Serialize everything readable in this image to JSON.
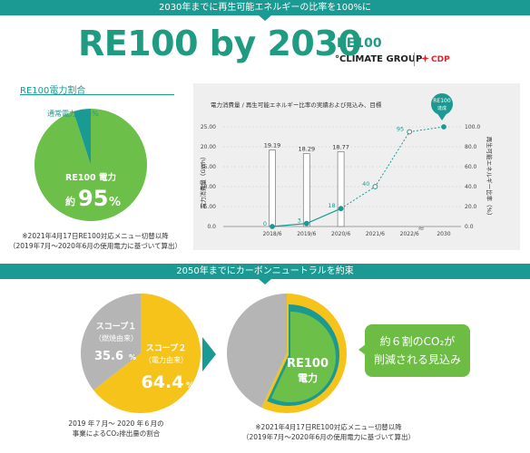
{
  "banner_top": "2030年までに再生可能エネルギーの比率を100%に",
  "main_title": "RE100 by 2030",
  "logos": {
    "re100": "RE100",
    "climate_group": "°CLIMATE GROUP",
    "cdp": "CDP"
  },
  "pie_section_title": "RE100電力割合",
  "pie1": {
    "label_small": "通常電力",
    "label_small_value": "約5%",
    "label_big": "RE100 電力",
    "label_big_value_prefix": "約",
    "label_big_value": "95",
    "label_big_unit": "%",
    "note_line1": "※2021年4月17日RE100対応メニュー切替以降",
    "note_line2": "（2019年7月～2020年6月の使用電力に基づいて算出）",
    "colors": {
      "re100": "#6cc04a",
      "normal": "#1a9a92"
    }
  },
  "chart_data": {
    "type": "bar",
    "title": "電力消費量 / 再生可能エネルギー比率の実績および見込み、目標",
    "categories": [
      "2018/6",
      "2019/6",
      "2020/6",
      "2021/6",
      "2022/6",
      "2030"
    ],
    "series": [
      {
        "name": "電力消費量",
        "type": "bar",
        "values": [
          19.19,
          18.29,
          18.77,
          null,
          null,
          null
        ],
        "color": "#ffffff"
      },
      {
        "name": "再生可能エネルギー比率",
        "type": "line",
        "values": [
          0,
          3,
          18,
          40,
          95,
          100
        ],
        "color": "#1a9a92"
      }
    ],
    "ylabel_left": "電力消費量（GWh）",
    "ylabel_right": "再生可能エネルギー比率（%）",
    "ylim_left": [
      0,
      25
    ],
    "ylim_right": [
      0,
      100
    ],
    "yticks_left": [
      "0.0",
      "5.00",
      "10.00",
      "15.00",
      "20.00",
      "25.00"
    ],
    "yticks_right": [
      "0.0",
      "20.0",
      "40.0",
      "60.0",
      "80.0",
      "100.0"
    ],
    "annotation": "RE100\n達成",
    "axis_break_symbol": "≈",
    "grid": true
  },
  "banner_mid": "2050年までにカーボンニュートラルを約束",
  "pie2": {
    "scope1_label_l1": "スコープ１",
    "scope1_label_l2": "（燃焼由来）",
    "scope1_value": "35.6",
    "scope1_unit": "%",
    "scope2_label_l1": "スコープ２",
    "scope2_label_l2": "（電力由来）",
    "scope2_value": "64.4",
    "scope2_unit": "%",
    "caption_line1": "2019 年７月～ 2020 年６月の",
    "caption_line2": "事業によるCO₂排出量の割合",
    "colors": {
      "scope1": "#b5b5b5",
      "scope2": "#f6c31b"
    }
  },
  "pie3": {
    "label_l1": "RE100",
    "label_l2": "電力",
    "note_line1": "※2021年4月17日RE100対応メニュー切替以降",
    "note_line2": "（2019年7月～2020年6月の使用電力に基づいて算出）",
    "colors": {
      "gray": "#b5b5b5",
      "yellow": "#f6c31b",
      "teal": "#1a9a92",
      "green": "#6cc04a"
    }
  },
  "callout": {
    "line1": "約６割のCO₂が",
    "line2": "削減される見込み"
  }
}
